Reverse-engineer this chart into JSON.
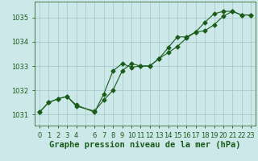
{
  "title": "Graphe pression niveau de la mer (hPa)",
  "bg_color": "#cde8e8",
  "grid_color": "#a8cccc",
  "line_color": "#1a5c1a",
  "marker_color": "#1a5c1a",
  "xlim": [
    -0.5,
    23.5
  ],
  "ylim": [
    1030.55,
    1035.65
  ],
  "yticks": [
    1031,
    1032,
    1033,
    1034,
    1035
  ],
  "series1_x": [
    0,
    1,
    2,
    3,
    4,
    6,
    7,
    8,
    9,
    10,
    11,
    12,
    13,
    14,
    15,
    16,
    17,
    18,
    19,
    20,
    21,
    22,
    23
  ],
  "series1_y": [
    1031.1,
    1031.5,
    1031.65,
    1031.75,
    1031.4,
    1031.1,
    1031.85,
    1032.8,
    1033.1,
    1032.95,
    1033.0,
    1033.0,
    1033.3,
    1033.75,
    1034.2,
    1034.2,
    1034.4,
    1034.8,
    1035.15,
    1035.25,
    1035.25,
    1035.1,
    1035.1
  ],
  "series2_x": [
    0,
    1,
    2,
    3,
    4,
    6,
    7,
    8,
    9,
    10,
    11,
    12,
    13,
    14,
    15,
    16,
    17,
    18,
    19,
    20,
    21,
    22,
    23
  ],
  "series2_y": [
    1031.1,
    1031.5,
    1031.65,
    1031.75,
    1031.35,
    1031.15,
    1031.6,
    1032.0,
    1032.8,
    1033.1,
    1033.0,
    1033.0,
    1033.3,
    1033.55,
    1033.8,
    1034.15,
    1034.4,
    1034.45,
    1034.7,
    1035.05,
    1035.25,
    1035.1,
    1035.1
  ],
  "title_fontsize": 7.5,
  "tick_fontsize": 6.0
}
